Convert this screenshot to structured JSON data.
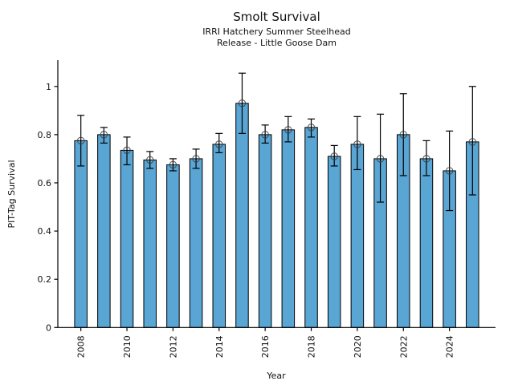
{
  "chart_data": {
    "type": "bar",
    "title": "Smolt Survival",
    "subtitle_line1": "IRRI Hatchery Summer Steelhead",
    "subtitle_line2": "Release - Little Goose Dam",
    "xlabel": "Year",
    "ylabel": "PIT-Tag Survival",
    "categories": [
      2008,
      2009,
      2010,
      2011,
      2012,
      2013,
      2014,
      2015,
      2016,
      2017,
      2018,
      2019,
      2020,
      2021,
      2022,
      2023,
      2024,
      2025
    ],
    "values": [
      0.775,
      0.8,
      0.735,
      0.695,
      0.675,
      0.7,
      0.76,
      0.93,
      0.8,
      0.82,
      0.83,
      0.71,
      0.76,
      0.7,
      0.8,
      0.7,
      0.65,
      0.77
    ],
    "error_low": [
      0.67,
      0.765,
      0.675,
      0.66,
      0.65,
      0.66,
      0.725,
      0.805,
      0.765,
      0.77,
      0.79,
      0.67,
      0.655,
      0.52,
      0.63,
      0.63,
      0.485,
      0.55
    ],
    "error_high": [
      0.88,
      0.83,
      0.79,
      0.73,
      0.7,
      0.74,
      0.805,
      1.055,
      0.84,
      0.875,
      0.865,
      0.755,
      0.875,
      0.885,
      0.97,
      0.775,
      0.815,
      1.0
    ],
    "x_tick_labels": [
      "2008",
      "2010",
      "2012",
      "2014",
      "2016",
      "2018",
      "2020",
      "2022",
      "2024"
    ],
    "y_ticks": [
      0,
      0.2,
      0.4,
      0.6,
      0.8,
      1
    ],
    "y_tick_labels": [
      "0",
      "0.2",
      "0.4",
      "0.6",
      "0.8",
      "1"
    ],
    "xlim": [
      2007,
      2026
    ],
    "ylim": [
      0,
      1.109
    ],
    "grid": false,
    "legend": "none",
    "bar_color": "#59A5D4",
    "bar_edge_color": "#000000",
    "error_color": "#000000",
    "marker_edge_color": "#3d3d3d",
    "axis_color": "#000000",
    "background_color": "#ffffff"
  }
}
